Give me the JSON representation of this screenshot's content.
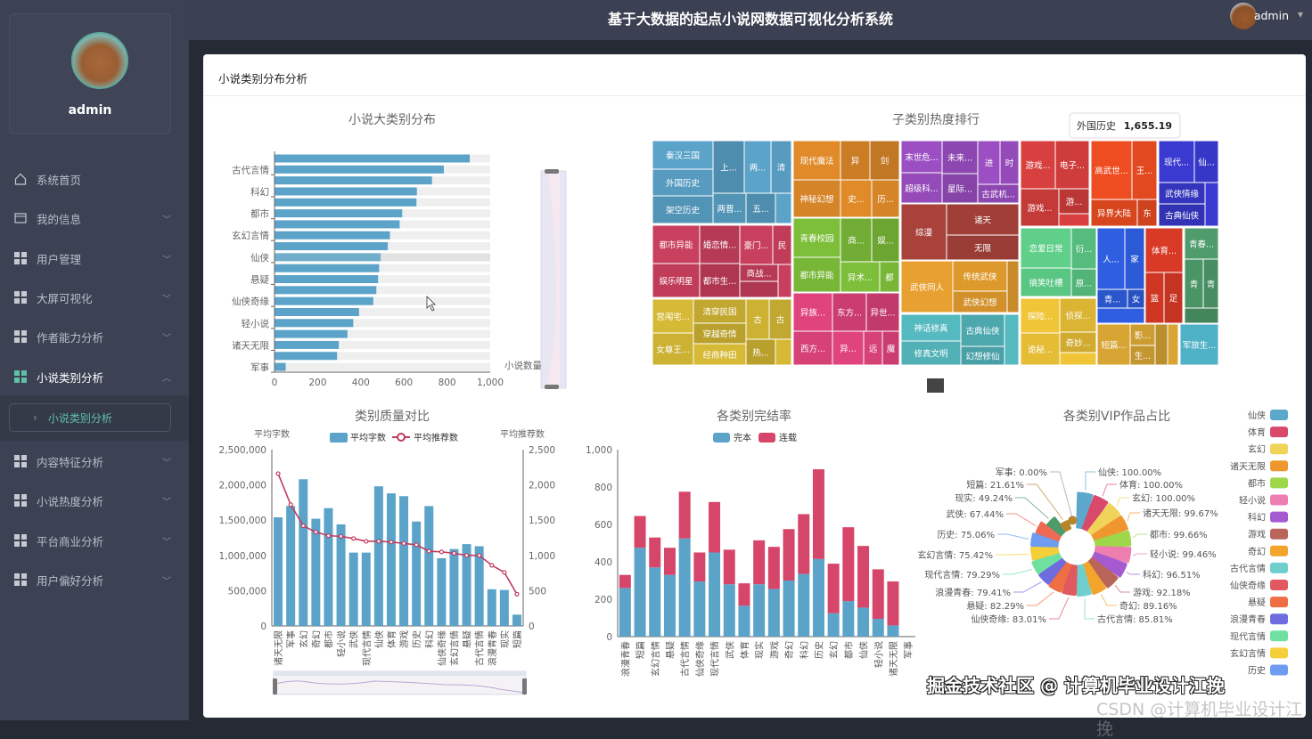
{
  "header": {
    "title": "基于大数据的起点小说网数据可视化分析系统",
    "user": "admin"
  },
  "sidebar": {
    "profile_name": "admin",
    "items": [
      {
        "label": "系统首页",
        "icon": "home-icon"
      },
      {
        "label": "我的信息",
        "icon": "card-icon"
      },
      {
        "label": "用户管理",
        "icon": "grid-icon"
      },
      {
        "label": "大屏可视化",
        "icon": "grid-icon"
      },
      {
        "label": "作者能力分析",
        "icon": "grid-icon"
      },
      {
        "label": "小说类别分析",
        "icon": "grid-icon",
        "active": true
      },
      {
        "label": "内容特征分析",
        "icon": "grid-icon"
      },
      {
        "label": "小说热度分析",
        "icon": "grid-icon"
      },
      {
        "label": "平台商业分析",
        "icon": "grid-icon"
      },
      {
        "label": "用户偏好分析",
        "icon": "grid-icon"
      }
    ],
    "submenu_active": "小说类别分析"
  },
  "card": {
    "title": "小说类别分布分析"
  },
  "watermark": {
    "main": "掘金技术社区 @ 计算机毕业设计江挽",
    "faint": "CSDN @计算机毕业设计江挽"
  },
  "chart_data": [
    {
      "type": "bar",
      "orientation": "horizontal",
      "title": "小说大类别分布",
      "xlabel": "小说数量",
      "xlim": [
        0,
        1000
      ],
      "xticks": [
        "0",
        "200",
        "400",
        "600",
        "800",
        "1,000"
      ],
      "categories": [
        "",
        "古代言情",
        "",
        "科幻",
        "",
        "都市",
        "",
        "玄幻言情",
        "",
        "仙侠",
        "",
        "悬疑",
        "",
        "仙侠奇缘",
        "",
        "轻小说",
        "",
        "诸天无限",
        "",
        "军事"
      ],
      "values": [
        905,
        785,
        730,
        660,
        658,
        592,
        580,
        535,
        525,
        492,
        485,
        480,
        472,
        458,
        392,
        365,
        338,
        298,
        290,
        52
      ],
      "color": "#5ba3c9",
      "show_background": true,
      "datazoom": "vertical-right"
    },
    {
      "type": "treemap",
      "title": "子类别热度排行",
      "tooltip": {
        "name": "外国历史",
        "value": "1,655.19"
      },
      "groups": [
        {
          "color": "#5ba3c9",
          "nodes": [
            "秦汉三国",
            "外国历史",
            "架空历史",
            "上...",
            "两...",
            "清",
            "两晋...",
            "五..."
          ]
        },
        {
          "color": "#c93f5e",
          "nodes": [
            "都市异能",
            "娱乐明星",
            "婚恋情...",
            "都市生...",
            "豪门...",
            "民",
            "商战..."
          ]
        },
        {
          "color": "#d6b935",
          "nodes": [
            "宫闱宅...",
            "女尊王...",
            "清穿民国",
            "穿越奇情",
            "经商种田",
            "古",
            "古",
            "热..."
          ]
        },
        {
          "color": "#e08a2a",
          "nodes": [
            "现代魔法",
            "神秘幻想",
            "异",
            "剑",
            "史...",
            "历..."
          ]
        },
        {
          "color": "#7dbf3a",
          "nodes": [
            "青春校园",
            "都市异能",
            "商...",
            "娱...",
            "异术...",
            "都"
          ]
        },
        {
          "color": "#e0447c",
          "nodes": [
            "异族...",
            "西方...",
            "东方...",
            "异世...",
            "异...",
            "远",
            "魔"
          ]
        },
        {
          "color": "#9b4fc2",
          "nodes": [
            "末世危...",
            "超级科...",
            "未来...",
            "星际...",
            "进",
            "时",
            "古武机..."
          ]
        },
        {
          "color": "#a8423b",
          "nodes": [
            "综漫",
            "诸天",
            "无限"
          ]
        },
        {
          "color": "#e8a030",
          "nodes": [
            "武侠同人",
            "传统武侠",
            "武侠幻想"
          ]
        },
        {
          "color": "#55b9c0",
          "nodes": [
            "神话修真",
            "修真文明",
            "古典仙侠",
            "幻想修仙"
          ]
        },
        {
          "color": "#d8403f",
          "nodes": [
            "游戏...",
            "电子...",
            "游戏...",
            "游..."
          ]
        },
        {
          "color": "#ee4d22",
          "nodes": [
            "高武世...",
            "王...",
            "异界大陆",
            "东"
          ]
        },
        {
          "color": "#3a3ad0",
          "nodes": [
            "现代...",
            "仙...",
            "武侠情缘",
            "古典仙侠"
          ]
        },
        {
          "color": "#5fcf8a",
          "nodes": [
            "恋爱日常",
            "搞笑吐槽",
            "衍...",
            "原..."
          ]
        },
        {
          "color": "#f0c638",
          "nodes": [
            "探险...",
            "诡秘...",
            "侦探...",
            "奇妙..."
          ]
        },
        {
          "color": "#2f5fe0",
          "nodes": [
            "人...",
            "家",
            "青...",
            "女"
          ]
        },
        {
          "color": "#d93a26",
          "nodes": [
            "体育...",
            "篮",
            "足"
          ]
        },
        {
          "color": "#4f9b6b",
          "nodes": [
            "青春...",
            "青",
            "青"
          ]
        },
        {
          "color": "#d8a535",
          "nodes": [
            "短篇...",
            "影...",
            "生..."
          ]
        },
        {
          "color": "#4fb1c6",
          "nodes": [
            "军旅生..."
          ]
        }
      ]
    },
    {
      "type": "bar+line",
      "title": "类别质量对比",
      "ylabel_left": "平均字数",
      "ylabel_right": "平均推荐数",
      "ylim_left": [
        0,
        2500000
      ],
      "ylim_right": [
        0,
        2500
      ],
      "yticks_left": [
        "0",
        "500,000",
        "1,000,000",
        "1,500,000",
        "2,000,000",
        "2,500,000"
      ],
      "yticks_right": [
        "0",
        "500",
        "1,000",
        "1,500",
        "2,000",
        "2,500"
      ],
      "categories": [
        "诸天无限",
        "军事",
        "玄幻",
        "奇幻",
        "都市",
        "轻小说",
        "武侠",
        "现代言情",
        "仙侠",
        "体育",
        "游戏",
        "历史",
        "科幻",
        "仙侠奇缘",
        "玄幻言情",
        "悬疑",
        "古代言情",
        "浪漫青春",
        "现实",
        "短篇"
      ],
      "series": [
        {
          "name": "平均字数",
          "type": "bar",
          "color": "#5ba3c9",
          "values": [
            1540000,
            1700000,
            2080000,
            1520000,
            1670000,
            1440000,
            1040000,
            1040000,
            1980000,
            1880000,
            1840000,
            1480000,
            1700000,
            960000,
            1090000,
            1160000,
            1130000,
            520000,
            510000,
            160000
          ]
        },
        {
          "name": "平均推荐数",
          "type": "line",
          "color": "#c23a5e",
          "values": [
            2160,
            1720,
            1420,
            1330,
            1280,
            1270,
            1240,
            1200,
            1200,
            1190,
            1170,
            1150,
            1060,
            1050,
            1030,
            1000,
            1000,
            860,
            760,
            450
          ]
        }
      ],
      "datazoom": "horizontal-bottom"
    },
    {
      "type": "stacked-bar",
      "title": "各类别完结率",
      "ylim": [
        0,
        1000
      ],
      "yticks": [
        "0",
        "200",
        "400",
        "600",
        "800",
        "1,000"
      ],
      "categories": [
        "浪漫青春",
        "短篇",
        "玄幻言情",
        "悬疑",
        "古代言情",
        "仙侠奇缘",
        "现代言情",
        "武侠",
        "体育",
        "现实",
        "游戏",
        "奇幻",
        "科幻",
        "历史",
        "玄幻",
        "都市",
        "仙侠",
        "轻小说",
        "诸天无限",
        "军事"
      ],
      "series": [
        {
          "name": "完本",
          "color": "#5ba3c9",
          "values": [
            260,
            475,
            370,
            330,
            525,
            295,
            450,
            280,
            165,
            280,
            255,
            300,
            335,
            415,
            125,
            190,
            155,
            95,
            60,
            0
          ]
        },
        {
          "name": "连载",
          "color": "#d6466a",
          "values": [
            70,
            170,
            160,
            145,
            250,
            155,
            270,
            185,
            120,
            235,
            225,
            275,
            320,
            480,
            265,
            395,
            330,
            265,
            235,
            0
          ]
        }
      ]
    },
    {
      "type": "pie",
      "variant": "rose-donut",
      "title": "各类别VIP作品占比",
      "legend": "right",
      "slices": [
        {
          "name": "仙侠",
          "value": 100.0,
          "label": "仙侠: 100.00%",
          "color": "#5ba8cc"
        },
        {
          "name": "体育",
          "value": 100.0,
          "label": "体育: 100.00%",
          "color": "#d9496b"
        },
        {
          "name": "玄幻",
          "value": 100.0,
          "label": "玄幻: 100.00%",
          "color": "#f0d45a"
        },
        {
          "name": "诸天无限",
          "value": 99.67,
          "label": "诸天无限: 99.67%",
          "color": "#f0962f"
        },
        {
          "name": "都市",
          "value": 99.66,
          "label": "都市: 99.66%",
          "color": "#9ed84a"
        },
        {
          "name": "轻小说",
          "value": 99.46,
          "label": "轻小说: 99.46%",
          "color": "#ef7eb0"
        },
        {
          "name": "科幻",
          "value": 96.51,
          "label": "科幻: 96.51%",
          "color": "#a55ad0"
        },
        {
          "name": "游戏",
          "value": 92.18,
          "label": "游戏: 92.18%",
          "color": "#b9655a"
        },
        {
          "name": "奇幻",
          "value": 89.16,
          "label": "奇幻: 89.16%",
          "color": "#f2a52a"
        },
        {
          "name": "古代言情",
          "value": 85.81,
          "label": "古代言情: 85.81%",
          "color": "#6fcfcf"
        },
        {
          "name": "仙侠奇缘",
          "value": 83.01,
          "label": "仙侠奇缘: 83.01%",
          "color": "#e0595f"
        },
        {
          "name": "悬疑",
          "value": 82.29,
          "label": "悬疑: 82.29%",
          "color": "#ef6e43"
        },
        {
          "name": "浪漫青春",
          "value": 79.41,
          "label": "浪漫青春: 79.41%",
          "color": "#6f6ce0"
        },
        {
          "name": "现代言情",
          "value": 79.29,
          "label": "现代言情: 79.29%",
          "color": "#6fe0a0"
        },
        {
          "name": "玄幻言情",
          "value": 75.42,
          "label": "玄幻言情: 75.42%",
          "color": "#f5cf3a"
        },
        {
          "name": "历史",
          "value": 75.06,
          "label": "历史: 75.06%",
          "color": "#6e9cf0"
        },
        {
          "name": "武侠",
          "value": 67.44,
          "label": "武侠: 67.44%",
          "color": "#ee6a55"
        },
        {
          "name": "现实",
          "value": 49.24,
          "label": "现实: 49.24%",
          "color": "#4d9a6a"
        },
        {
          "name": "短篇",
          "value": 21.61,
          "label": "短篇: 21.61%",
          "color": "#b8862a"
        },
        {
          "name": "军事",
          "value": 0.0,
          "label": "军事: 0.00%",
          "color": "#999999"
        }
      ]
    }
  ]
}
